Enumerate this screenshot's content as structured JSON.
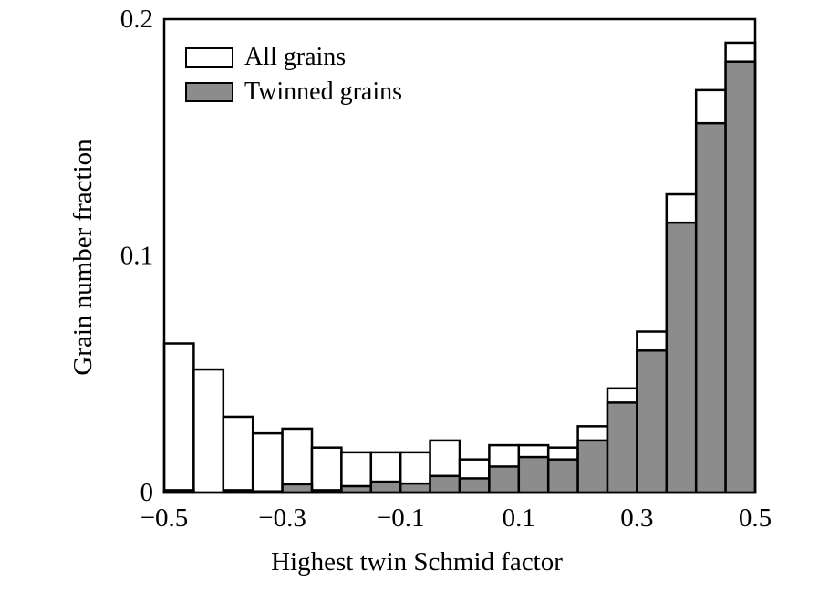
{
  "chart_data": {
    "type": "bar",
    "title": "",
    "xlabel": "Highest twin Schmid factor",
    "ylabel": "Grain number fraction",
    "xlim": [
      -0.5,
      0.5
    ],
    "ylim": [
      0,
      0.2
    ],
    "bin_width": 0.05,
    "grid": false,
    "legend_position": "top-left",
    "x_ticks": [
      -0.5,
      -0.3,
      -0.1,
      0.1,
      0.3,
      0.5
    ],
    "x_tick_labels": [
      "−0.5",
      "−0.3",
      "−0.1",
      "0.1",
      "0.3",
      "0.5"
    ],
    "y_ticks": [
      0,
      0.1,
      0.2
    ],
    "y_tick_labels": [
      "0",
      "0.1",
      "0.2"
    ],
    "bin_starts": [
      -0.5,
      -0.45,
      -0.4,
      -0.35,
      -0.3,
      -0.25,
      -0.2,
      -0.15,
      -0.1,
      -0.05,
      0,
      0.05,
      0.1,
      0.15,
      0.2,
      0.25,
      0.3,
      0.35,
      0.4,
      0.45
    ],
    "series": [
      {
        "name": "All grains",
        "color": "#ffffff",
        "values": [
          0.063,
          0.052,
          0.032,
          0.025,
          0.027,
          0.019,
          0.017,
          0.017,
          0.017,
          0.022,
          0.014,
          0.02,
          0.02,
          0.019,
          0.028,
          0.044,
          0.068,
          0.126,
          0.17,
          0.19
        ]
      },
      {
        "name": "Twinned grains",
        "color": "#8c8c8c",
        "values": [
          0.001,
          0.0,
          0.001,
          0.0005,
          0.0035,
          0.001,
          0.0027,
          0.0046,
          0.0038,
          0.007,
          0.006,
          0.011,
          0.015,
          0.014,
          0.022,
          0.038,
          0.06,
          0.114,
          0.156,
          0.182
        ]
      }
    ]
  }
}
